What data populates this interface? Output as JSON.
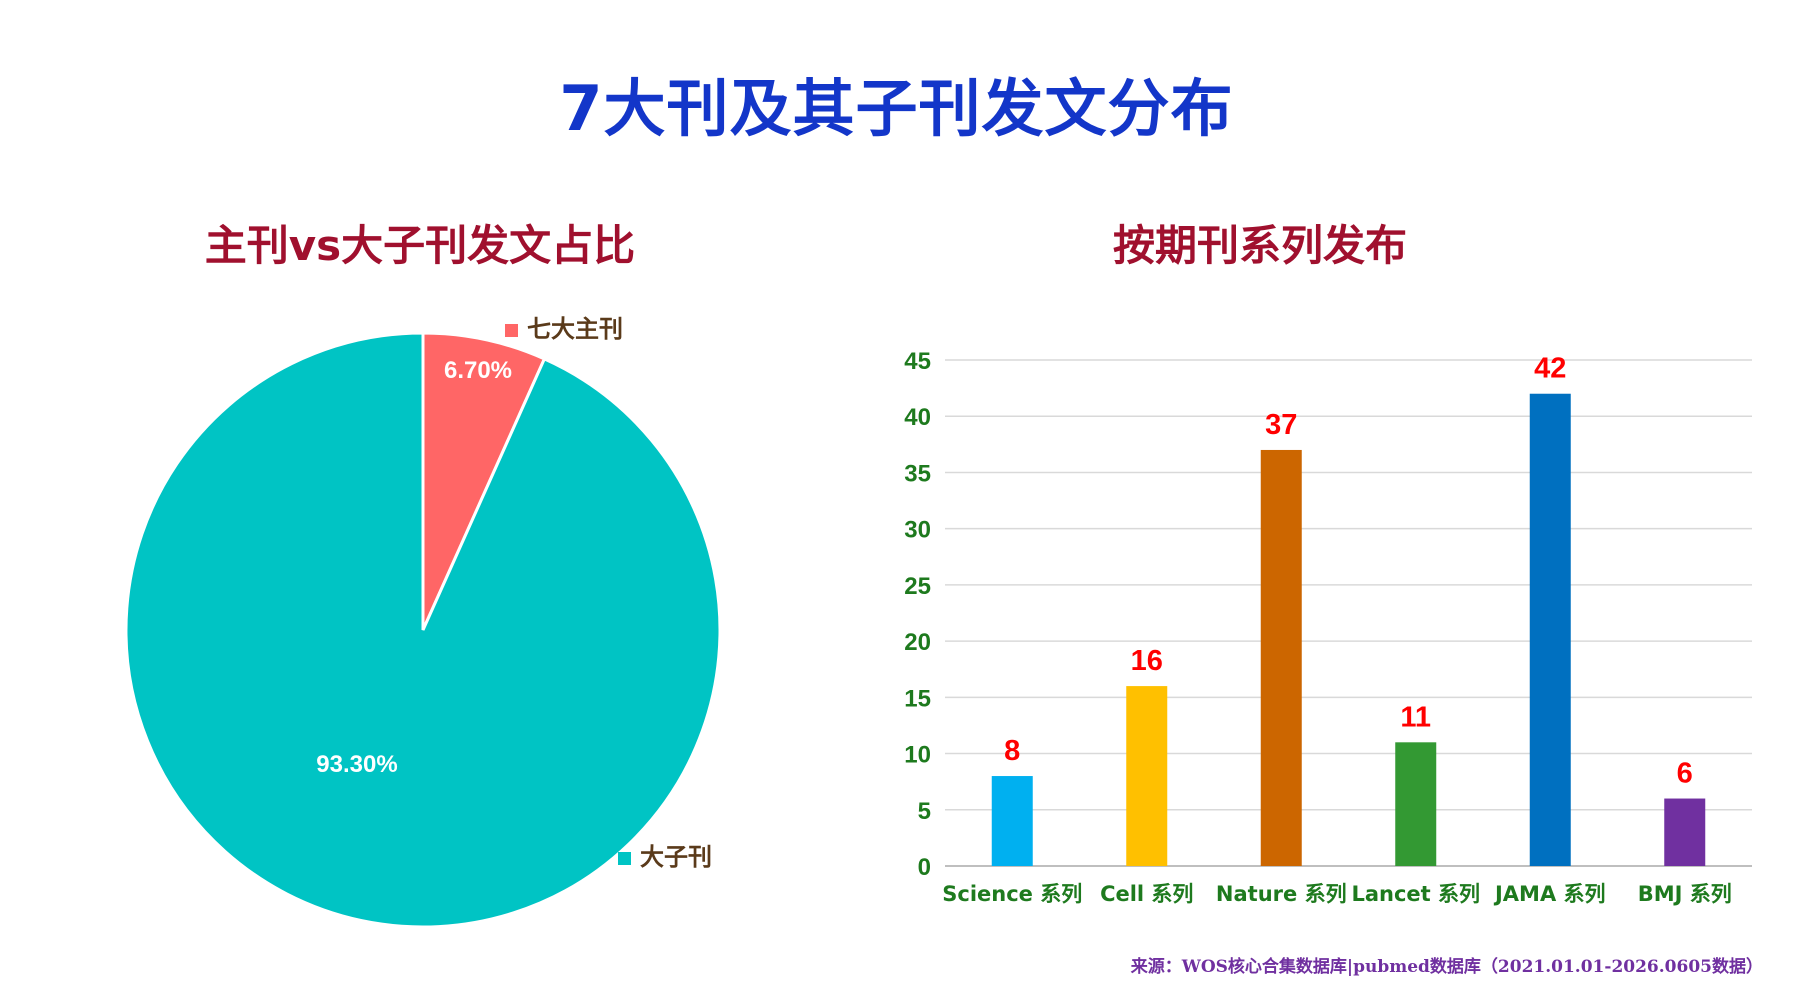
{
  "title": "7大刊及其子刊发文分布",
  "source_note": "来源：WOS核心合集数据库|pubmed数据库（2021.01.01-2026.0605数据）",
  "chart_data": [
    {
      "type": "pie",
      "title": "主刊vs大子刊发文占比",
      "slices": [
        {
          "label": "七大主刊",
          "value": 6.7,
          "display": "6.70%",
          "color": "#ff6666"
        },
        {
          "label": "大子刊",
          "value": 93.3,
          "display": "93.30%",
          "color": "#00c4c4"
        }
      ],
      "legend": "beside slices"
    },
    {
      "type": "bar",
      "title": "按期刊系列发布",
      "categories": [
        "Science 系列",
        "Cell 系列",
        "Nature 系列",
        "Lancet 系列",
        "JAMA 系列",
        "BMJ 系列"
      ],
      "values": [
        8,
        16,
        37,
        11,
        42,
        6
      ],
      "colors": [
        "#00b0f0",
        "#ffc000",
        "#cc6600",
        "#339933",
        "#0070c0",
        "#7030a0"
      ],
      "ylim": [
        0,
        45
      ],
      "yticks": [
        0,
        5,
        10,
        15,
        20,
        25,
        30,
        35,
        40,
        45
      ],
      "grid": true,
      "label_color": "#ff0000",
      "axis_label_color": "#1e7a1e",
      "xlabel": "",
      "ylabel": ""
    }
  ]
}
